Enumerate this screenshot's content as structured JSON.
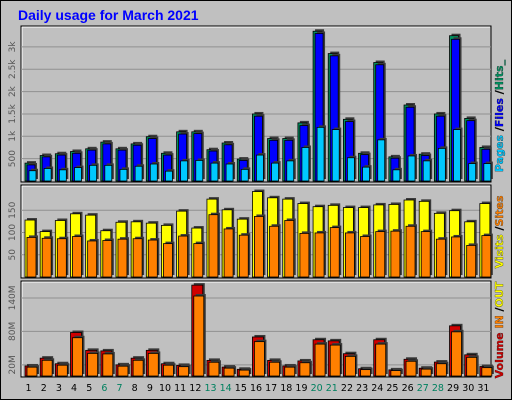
{
  "title": "Daily usage for March 2021",
  "colors": {
    "pages": "#00c8ff",
    "files": "#0000ff",
    "hits": "#009060",
    "visits": "#ffff00",
    "sites": "#ff8000",
    "in": "#ff8000",
    "out": "#ffff00",
    "kb": "#d00000",
    "weekend": "#00805f",
    "weekday": "#000000"
  },
  "legend_right": {
    "top": [
      {
        "text": "Pages",
        "color": "#00c8ff"
      },
      {
        "text": " /",
        "color": "#000000"
      },
      {
        "text": "Files",
        "color": "#0000ff"
      },
      {
        "text": " /",
        "color": "#000000"
      },
      {
        "text": "Hits_",
        "color": "#009060"
      }
    ],
    "middle": [
      {
        "text": "Visits",
        "color": "#ffff00"
      },
      {
        "text": " /",
        "color": "#000000"
      },
      {
        "text": "Sites",
        "color": "#ff8000"
      }
    ],
    "bottom": [
      {
        "text": "Volume",
        "color": "#d00000"
      },
      {
        "text": "  IN ",
        "color": "#ff8000"
      },
      {
        "text": "/",
        "color": "#000000"
      },
      {
        "text": "OUT",
        "color": "#ffff00"
      }
    ]
  },
  "chart_data": [
    {
      "type": "bar",
      "panel": "hits-files-pages",
      "categories": [
        "1",
        "2",
        "3",
        "4",
        "5",
        "6",
        "7",
        "8",
        "9",
        "10",
        "11",
        "12",
        "13",
        "14",
        "15",
        "16",
        "17",
        "18",
        "19",
        "20",
        "21",
        "22",
        "23",
        "24",
        "25",
        "26",
        "27",
        "28",
        "29",
        "30",
        "31"
      ],
      "weekend_days": [
        "6",
        "7",
        "13",
        "14",
        "20",
        "21",
        "27",
        "28"
      ],
      "ylim": [
        0,
        3400
      ],
      "yticks": [
        500,
        1000,
        1500,
        2000,
        2500,
        3000
      ],
      "ytick_labels": [
        "500",
        "1k",
        "1.5k",
        "2k",
        "2.5k",
        "3k"
      ],
      "series": [
        {
          "name": "Hits",
          "values": [
            400,
            570,
            610,
            660,
            720,
            870,
            720,
            830,
            990,
            620,
            1100,
            1100,
            700,
            850,
            490,
            1500,
            950,
            950,
            1300,
            3350,
            2850,
            1380,
            620,
            2650,
            540,
            1700,
            600,
            1500,
            3250,
            1400,
            750
          ]
        },
        {
          "name": "Files",
          "values": [
            360,
            540,
            580,
            620,
            690,
            830,
            690,
            800,
            950,
            580,
            1050,
            1060,
            670,
            810,
            460,
            1450,
            910,
            910,
            1240,
            3300,
            2800,
            1330,
            590,
            2600,
            510,
            1650,
            570,
            1450,
            3170,
            1350,
            710
          ]
        },
        {
          "name": "Pages",
          "values": [
            230,
            280,
            250,
            300,
            350,
            350,
            260,
            330,
            380,
            220,
            450,
            460,
            400,
            380,
            260,
            580,
            400,
            450,
            750,
            1200,
            1150,
            520,
            310,
            920,
            250,
            560,
            450,
            730,
            1150,
            390,
            390
          ]
        }
      ]
    },
    {
      "type": "bar",
      "panel": "visits-sites",
      "categories": [
        "1",
        "2",
        "3",
        "4",
        "5",
        "6",
        "7",
        "8",
        "9",
        "10",
        "11",
        "12",
        "13",
        "14",
        "15",
        "16",
        "17",
        "18",
        "19",
        "20",
        "21",
        "22",
        "23",
        "24",
        "25",
        "26",
        "27",
        "28",
        "29",
        "30",
        "31"
      ],
      "ylim": [
        0,
        200
      ],
      "yticks": [
        50,
        100,
        150
      ],
      "ytick_labels": [
        "50",
        "100",
        "150"
      ],
      "series": [
        {
          "name": "Visits",
          "values": [
            128,
            102,
            127,
            142,
            139,
            104,
            123,
            124,
            121,
            116,
            148,
            110,
            175,
            151,
            130,
            192,
            178,
            175,
            165,
            158,
            161,
            156,
            156,
            162,
            163,
            173,
            170,
            143,
            149,
            124,
            165
          ]
        },
        {
          "name": "Sites",
          "values": [
            89,
            87,
            86,
            91,
            81,
            82,
            85,
            86,
            83,
            75,
            92,
            75,
            140,
            108,
            94,
            136,
            114,
            127,
            98,
            99,
            111,
            99,
            91,
            102,
            103,
            114,
            102,
            85,
            90,
            71,
            93
          ]
        }
      ]
    },
    {
      "type": "bar",
      "panel": "volume",
      "categories": [
        "1",
        "2",
        "3",
        "4",
        "5",
        "6",
        "7",
        "8",
        "9",
        "10",
        "11",
        "12",
        "13",
        "14",
        "15",
        "16",
        "17",
        "18",
        "19",
        "20",
        "21",
        "22",
        "23",
        "24",
        "25",
        "26",
        "27",
        "28",
        "29",
        "30",
        "31"
      ],
      "ylim": [
        0,
        165
      ],
      "yticks": [
        20,
        80,
        140
      ],
      "ytick_labels": [
        "20M",
        "80M",
        "140M"
      ],
      "series": [
        {
          "name": "Volume",
          "values": [
            18,
            32,
            22,
            78,
            46,
            45,
            20,
            32,
            46,
            22,
            19,
            163,
            28,
            16,
            12,
            70,
            28,
            18,
            27,
            65,
            63,
            40,
            13,
            65,
            11,
            30,
            14,
            25,
            90,
            38,
            17
          ]
        }
      ]
    }
  ]
}
